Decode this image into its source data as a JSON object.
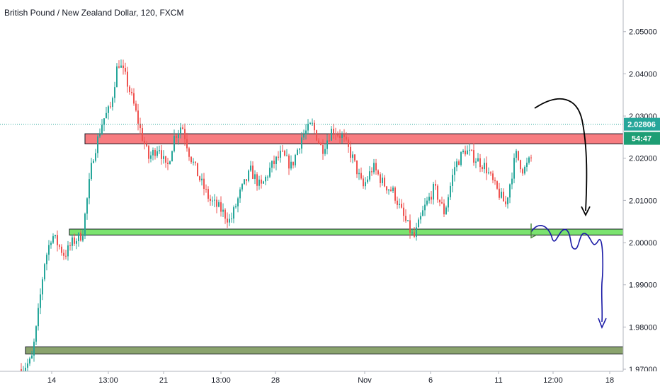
{
  "chart_data": {
    "type": "candlestick",
    "title": "British Pound / New Zealand Dollar, 120, FXCM",
    "y_ticks": [
      "2.05000",
      "2.04000",
      "2.03000",
      "2.02000",
      "2.01000",
      "2.00000",
      "1.99000",
      "1.98000",
      "1.97000"
    ],
    "x_ticks": [
      "14",
      "13:00",
      "21",
      "13:00",
      "28",
      "Nov",
      "6",
      "11",
      "12:00",
      "18"
    ],
    "ylim": [
      1.9695,
      2.0575
    ],
    "last_price": "2.02806",
    "countdown": "54:47",
    "zones": [
      {
        "name": "resistance",
        "low": 2.0234,
        "high": 2.0258,
        "color": "#f77c80"
      },
      {
        "name": "support",
        "low": 2.0018,
        "high": 2.0032,
        "color": "#7be36f"
      },
      {
        "name": "lower-support",
        "low": 1.9736,
        "high": 1.9753,
        "color": "#8aa36d"
      }
    ],
    "price_path": [
      [
        0,
        1.97
      ],
      [
        0.02,
        1.972
      ],
      [
        0.03,
        1.98
      ],
      [
        0.045,
        1.995
      ],
      [
        0.06,
        2.002
      ],
      [
        0.07,
        2.0
      ],
      [
        0.085,
        1.997
      ],
      [
        0.1,
        2.0
      ],
      [
        0.12,
        2.002
      ],
      [
        0.14,
        2.02
      ],
      [
        0.16,
        2.029
      ],
      [
        0.175,
        2.032
      ],
      [
        0.19,
        2.043
      ],
      [
        0.205,
        2.039
      ],
      [
        0.22,
        2.033
      ],
      [
        0.235,
        2.026
      ],
      [
        0.25,
        2.02
      ],
      [
        0.27,
        2.023
      ],
      [
        0.285,
        2.017
      ],
      [
        0.3,
        2.025
      ],
      [
        0.315,
        2.028
      ],
      [
        0.33,
        2.021
      ],
      [
        0.35,
        2.015
      ],
      [
        0.37,
        2.01
      ],
      [
        0.39,
        2.008
      ],
      [
        0.41,
        2.005
      ],
      [
        0.43,
        2.012
      ],
      [
        0.45,
        2.017
      ],
      [
        0.47,
        2.013
      ],
      [
        0.49,
        2.018
      ],
      [
        0.51,
        2.021
      ],
      [
        0.53,
        2.018
      ],
      [
        0.55,
        2.025
      ],
      [
        0.57,
        2.028
      ],
      [
        0.59,
        2.022
      ],
      [
        0.61,
        2.027
      ],
      [
        0.63,
        2.025
      ],
      [
        0.65,
        2.02
      ],
      [
        0.67,
        2.013
      ],
      [
        0.69,
        2.018
      ],
      [
        0.71,
        2.014
      ],
      [
        0.73,
        2.012
      ],
      [
        0.75,
        2.006
      ],
      [
        0.77,
        2.001
      ],
      [
        0.79,
        2.008
      ],
      [
        0.81,
        2.013
      ],
      [
        0.83,
        2.007
      ],
      [
        0.85,
        2.018
      ],
      [
        0.87,
        2.022
      ],
      [
        0.89,
        2.02
      ],
      [
        0.91,
        2.018
      ],
      [
        0.93,
        2.013
      ],
      [
        0.95,
        2.009
      ],
      [
        0.97,
        2.021
      ],
      [
        0.985,
        2.017
      ],
      [
        1.0,
        2.02
      ]
    ],
    "annotations": [
      {
        "name": "projected-drop-arrow",
        "color": "#000000"
      },
      {
        "name": "projected-wave-arrow",
        "color": "#1a1aa6"
      }
    ],
    "colors": {
      "up": "#26a69a",
      "down": "#ef5350",
      "price_line": "#26a69a",
      "countdown_bg": "#1e9e74"
    }
  }
}
